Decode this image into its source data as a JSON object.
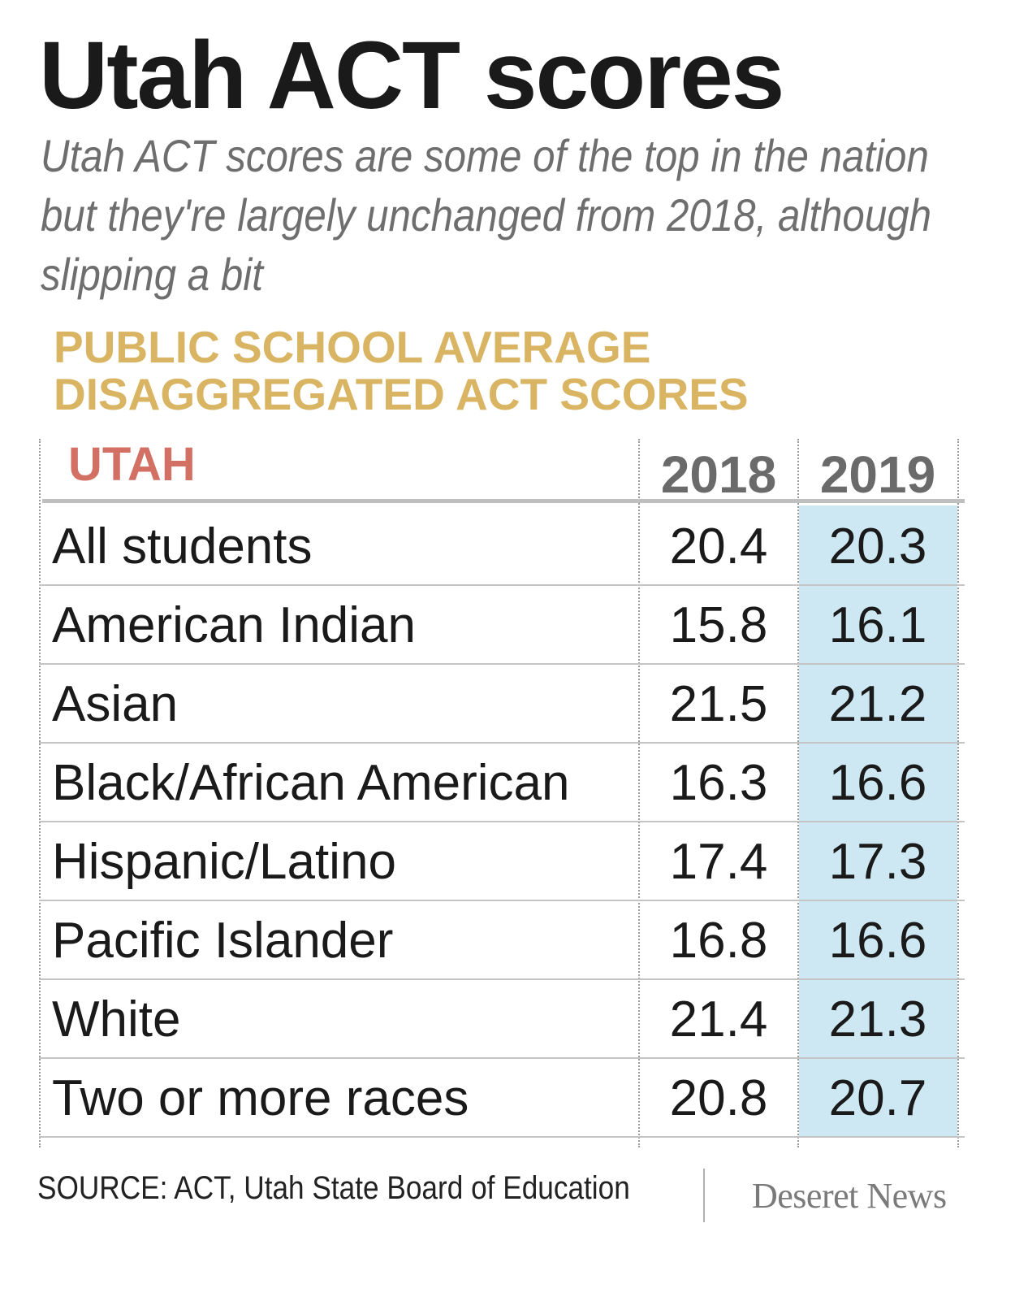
{
  "title": "Utah ACT scores",
  "subtitle": "Utah ACT scores are some of the top in the nation but they're largely unchanged from 2018, although slipping a bit",
  "section_title_line1": "PUBLIC SCHOOL AVERAGE",
  "section_title_line2": "DISAGGREGATED ACT SCORES",
  "source": "SOURCE: ACT, Utah State Board of Education",
  "brand": "Deseret News",
  "colors": {
    "title": "#1a1a1a",
    "section_title": "#d9b563",
    "region_label": "#d27064",
    "highlight_column": "#cde8f2"
  },
  "chart_data": {
    "type": "table",
    "title": "Utah ACT scores",
    "subtitle": "PUBLIC SCHOOL AVERAGE DISAGGREGATED ACT SCORES",
    "region": "UTAH",
    "columns": [
      "2018",
      "2019"
    ],
    "highlighted_column": "2019",
    "rows": [
      {
        "label": "All students",
        "values": [
          "20.4",
          "20.3"
        ]
      },
      {
        "label": "American Indian",
        "values": [
          "15.8",
          "16.1"
        ]
      },
      {
        "label": "Asian",
        "values": [
          "21.5",
          "21.2"
        ]
      },
      {
        "label": "Black/African American",
        "values": [
          "16.3",
          "16.6"
        ]
      },
      {
        "label": "Hispanic/Latino",
        "values": [
          "17.4",
          "17.3"
        ]
      },
      {
        "label": "Pacific Islander",
        "values": [
          "16.8",
          "16.6"
        ]
      },
      {
        "label": "White",
        "values": [
          "21.4",
          "21.3"
        ]
      },
      {
        "label": "Two or more races",
        "values": [
          "20.8",
          "20.7"
        ]
      }
    ]
  }
}
